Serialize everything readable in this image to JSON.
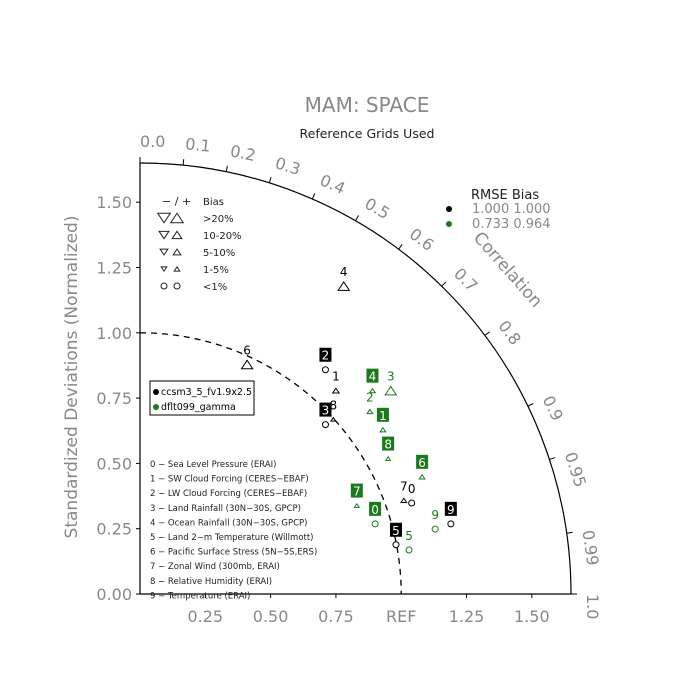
{
  "chart_data": {
    "type": "scatter",
    "title": "MAM: SPACE",
    "subtitle": "Reference Grids Used",
    "ylabel": "Standardized Deviations (Normalized)",
    "correlation_label": "Correlation",
    "ref_label": "REF",
    "std_ticks": [
      {
        "v": 0.0,
        "label": "0.00"
      },
      {
        "v": 0.25,
        "label": "0.25"
      },
      {
        "v": 0.5,
        "label": "0.50"
      },
      {
        "v": 0.75,
        "label": "0.75"
      },
      {
        "v": 1.0,
        "label": "1.00"
      },
      {
        "v": 1.25,
        "label": "1.25"
      },
      {
        "v": 1.5,
        "label": "1.50"
      }
    ],
    "x_ticks": [
      {
        "v": 0.25,
        "label": "0.25"
      },
      {
        "v": 0.5,
        "label": "0.50"
      },
      {
        "v": 0.75,
        "label": "0.75"
      },
      {
        "v": 1.25,
        "label": "1.25"
      },
      {
        "v": 1.5,
        "label": "1.50"
      }
    ],
    "corr_ticks": [
      {
        "v": 0.0,
        "label": "0.0"
      },
      {
        "v": 0.1,
        "label": "0.1"
      },
      {
        "v": 0.2,
        "label": "0.2"
      },
      {
        "v": 0.3,
        "label": "0.3"
      },
      {
        "v": 0.4,
        "label": "0.4"
      },
      {
        "v": 0.5,
        "label": "0.5"
      },
      {
        "v": 0.6,
        "label": "0.6"
      },
      {
        "v": 0.7,
        "label": "0.7"
      },
      {
        "v": 0.8,
        "label": "0.8"
      },
      {
        "v": 0.9,
        "label": "0.9"
      },
      {
        "v": 0.95,
        "label": "0.95"
      },
      {
        "v": 0.99,
        "label": "0.99"
      },
      {
        "v": 1.0,
        "label": "1.0"
      }
    ],
    "axis_max": 1.65,
    "ref_std": 1.0,
    "bias_legend": {
      "header_signs": "− / +",
      "header_bias": "Bias",
      "rows": [
        {
          "label": ">20%",
          "size": 9,
          "shape": "triangle"
        },
        {
          "label": "10-20%",
          "size": 7,
          "shape": "triangle"
        },
        {
          "label": "5-10%",
          "size": 5.5,
          "shape": "triangle"
        },
        {
          "label": "1-5%",
          "size": 4,
          "shape": "triangle"
        },
        {
          "label": "<1%",
          "size": 3,
          "shape": "circle"
        }
      ]
    },
    "rmse_table": {
      "header": "RMSE  Bias",
      "rows": [
        {
          "values": "1.000 1.000",
          "color": "#000000"
        },
        {
          "values": "0.733 0.964",
          "color": "#1a7a1a"
        }
      ]
    },
    "legend": {
      "series": [
        {
          "name": "ccsm3_5_fv1.9x2.5",
          "color": "#000000"
        },
        {
          "name": "dflt099_gamma",
          "color": "#1a7a1a"
        }
      ]
    },
    "variables": [
      "0 − Sea Level Pressure (ERAI)",
      "1 − SW Cloud Forcing (CERES−EBAF)",
      "2 − LW Cloud Forcing (CERES−EBAF)",
      "3 − Land Rainfall (30N−30S, GPCP)",
      "4 − Ocean Rainfall (30N−30S, GPCP)",
      "5 − Land 2−m Temperature (Willmott)",
      "6 − Pacific Surface Stress (5N−5S,ERS)",
      "7 − Zonal Wind (300mb, ERAI)",
      "8 − Relative Humidity (ERAI)",
      "9 − Temperature (ERAI)"
    ],
    "series": [
      {
        "name": "ccsm3_5_fv1.9x2.5",
        "color": "#000000",
        "points": [
          {
            "id": "0",
            "x": 1.04,
            "y": 0.36,
            "marker": "circle",
            "boxed": false,
            "marker_up": false,
            "size": 3
          },
          {
            "id": "1",
            "x": 0.75,
            "y": 0.79,
            "marker": "triangle-up",
            "boxed": false,
            "marker_up": false,
            "size": 4
          },
          {
            "id": "2",
            "x": 0.71,
            "y": 0.87,
            "marker": "circle",
            "boxed": true,
            "marker_up": false,
            "size": 3
          },
          {
            "id": "3",
            "x": 0.71,
            "y": 0.66,
            "marker": "circle",
            "boxed": true,
            "marker_up": false,
            "size": 3
          },
          {
            "id": "4",
            "x": 0.78,
            "y": 1.19,
            "marker": "triangle-up",
            "boxed": false,
            "marker_up": false,
            "size": 7
          },
          {
            "id": "5",
            "x": 0.98,
            "y": 0.2,
            "marker": "circle",
            "boxed": true,
            "marker_up": false,
            "size": 3
          },
          {
            "id": "6",
            "x": 0.41,
            "y": 0.89,
            "marker": "triangle-up",
            "boxed": false,
            "marker_up": false,
            "size": 7
          },
          {
            "id": "7",
            "x": 1.01,
            "y": 0.37,
            "marker": "triangle-up",
            "boxed": false,
            "marker_up": false,
            "size": 3.5
          },
          {
            "id": "8",
            "x": 0.74,
            "y": 0.68,
            "marker": "triangle-up",
            "boxed": false,
            "marker_up": false,
            "size": 3
          },
          {
            "id": "9",
            "x": 1.19,
            "y": 0.28,
            "marker": "circle",
            "boxed": true,
            "marker_up": false,
            "size": 3
          }
        ]
      },
      {
        "name": "dflt099_gamma",
        "color": "#1a7a1a",
        "points": [
          {
            "id": "0",
            "x": 0.9,
            "y": 0.28,
            "marker": "circle",
            "boxed": true,
            "marker_up": false,
            "size": 3
          },
          {
            "id": "1",
            "x": 0.93,
            "y": 0.64,
            "marker": "triangle-up",
            "boxed": true,
            "marker_up": false,
            "size": 3.5
          },
          {
            "id": "2",
            "x": 0.88,
            "y": 0.71,
            "marker": "triangle-up",
            "boxed": false,
            "marker_up": true,
            "size": 3.5
          },
          {
            "id": "3",
            "x": 0.96,
            "y": 0.79,
            "marker": "triangle-up",
            "boxed": false,
            "marker_up": false,
            "size": 7
          },
          {
            "id": "4",
            "x": 0.89,
            "y": 0.79,
            "marker": "triangle-up",
            "boxed": true,
            "marker_up": false,
            "size": 3.5
          },
          {
            "id": "5",
            "x": 1.03,
            "y": 0.18,
            "marker": "circle",
            "boxed": false,
            "marker_up": false,
            "size": 3
          },
          {
            "id": "6",
            "x": 1.08,
            "y": 0.46,
            "marker": "triangle-up",
            "boxed": true,
            "marker_up": false,
            "size": 3.5
          },
          {
            "id": "7",
            "x": 0.83,
            "y": 0.35,
            "marker": "triangle-up",
            "boxed": true,
            "marker_up": false,
            "size": 3
          },
          {
            "id": "8",
            "x": 0.95,
            "y": 0.53,
            "marker": "triangle-up",
            "boxed": true,
            "marker_up": false,
            "size": 3
          },
          {
            "id": "9",
            "x": 1.13,
            "y": 0.26,
            "marker": "circle",
            "boxed": false,
            "marker_up": false,
            "size": 3
          }
        ]
      }
    ]
  }
}
